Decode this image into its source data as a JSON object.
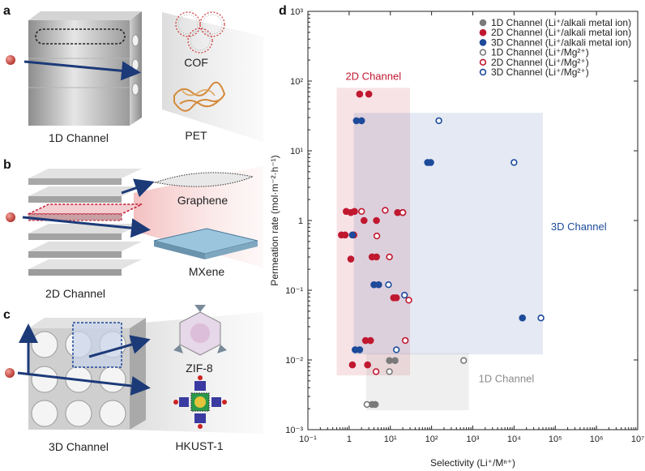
{
  "panels": {
    "a": {
      "letter": "a",
      "channel_label": "1D Channel",
      "materials": [
        "COF",
        "PET"
      ]
    },
    "b": {
      "letter": "b",
      "channel_label": "2D Channel",
      "materials": [
        "Graphene",
        "MXene"
      ]
    },
    "c": {
      "letter": "c",
      "channel_label": "3D Channel",
      "materials": [
        "ZIF-8",
        "HKUST-1"
      ]
    },
    "d": {
      "letter": "d"
    }
  },
  "colors": {
    "oneD": "#7a7a7a",
    "twoD": "#c0182f",
    "threeD": "#1d4a9a",
    "arrow": "#1c3a78",
    "ion": "#c9463f"
  },
  "chart_data": {
    "type": "scatter",
    "xlabel": "Selectivity (Li⁺/Mⁿ⁺)",
    "ylabel": "Permeation rate (mol·m⁻²·h⁻¹)",
    "xscale": "log",
    "yscale": "log",
    "xlim": [
      0.1,
      10000000
    ],
    "ylim": [
      0.001,
      1000
    ],
    "x_ticks": [
      "10⁻¹",
      "1",
      "10¹",
      "10²",
      "10³",
      "10⁴",
      "10⁵",
      "10⁶",
      "10⁷"
    ],
    "y_ticks": [
      "10⁻³",
      "10⁻²",
      "10⁻¹",
      "1",
      "10¹",
      "10²",
      "10³"
    ],
    "legend_position": "top-right",
    "regions": [
      {
        "label": "2D Channel",
        "color": "#c0182f",
        "x": [
          0.5,
          30
        ],
        "y": [
          0.006,
          80
        ]
      },
      {
        "label": "3D Channel",
        "color": "#1d4a9a",
        "x": [
          1.3,
          50000
        ],
        "y": [
          0.012,
          35
        ]
      },
      {
        "label": "1D Channel",
        "color": "#7a7a7a",
        "x": [
          2.6,
          800
        ],
        "y": [
          0.0019,
          0.0125
        ]
      }
    ],
    "series": [
      {
        "name": "1D Channel (Li⁺/alkali metal ion)",
        "color": "#7a7a7a",
        "filled": true,
        "points": [
          [
            3.6,
            0.0023
          ],
          [
            4.3,
            0.0023
          ],
          [
            9.5,
            0.0098
          ],
          [
            13,
            0.0098
          ]
        ]
      },
      {
        "name": "2D Channel (Li⁺/alkali metal ion)",
        "color": "#c0182f",
        "filled": true,
        "points": [
          [
            1.8,
            65
          ],
          [
            3.0,
            65
          ],
          [
            0.85,
            1.35
          ],
          [
            1.1,
            1.3
          ],
          [
            1.35,
            1.35
          ],
          [
            2.3,
            1.0
          ],
          [
            4.6,
            1.0
          ],
          [
            15,
            1.3
          ],
          [
            20,
            1.3
          ],
          [
            0.65,
            0.62
          ],
          [
            0.8,
            0.62
          ],
          [
            1.3,
            0.62
          ],
          [
            1.1,
            0.28
          ],
          [
            3.6,
            0.3
          ],
          [
            4.6,
            0.3
          ],
          [
            12,
            0.078
          ],
          [
            14,
            0.078
          ],
          [
            2.5,
            0.019
          ],
          [
            3.3,
            0.019
          ],
          [
            1.2,
            0.0085
          ],
          [
            2.8,
            0.0085
          ]
        ]
      },
      {
        "name": "3D Channel (Li⁺/alkali metal ion)",
        "color": "#1d4a9a",
        "filled": true,
        "points": [
          [
            1.5,
            27
          ],
          [
            2.0,
            27
          ],
          [
            80,
            6.8
          ],
          [
            95,
            6.8
          ],
          [
            1.2,
            0.62
          ],
          [
            4.0,
            0.12
          ],
          [
            5.2,
            0.12
          ],
          [
            1.4,
            0.014
          ],
          [
            1.8,
            0.014
          ],
          [
            16000,
            0.04
          ]
        ]
      },
      {
        "name": "1D Channel (Li⁺/Mg²⁺)",
        "color": "#7a7a7a",
        "filled": false,
        "points": [
          [
            2.7,
            0.0023
          ],
          [
            9.5,
            0.0068
          ],
          [
            600,
            0.0098
          ]
        ]
      },
      {
        "name": "2D Channel (Li⁺/Mg²⁺)",
        "color": "#c0182f",
        "filled": false,
        "points": [
          [
            2.0,
            1.35
          ],
          [
            7.5,
            1.4
          ],
          [
            9.5,
            0.3
          ],
          [
            20,
            1.3
          ],
          [
            4.7,
            0.6
          ],
          [
            28,
            0.072
          ],
          [
            23,
            0.019
          ],
          [
            4.5,
            0.0068
          ]
        ]
      },
      {
        "name": "3D Channel (Li⁺/Mg²⁺)",
        "color": "#1d4a9a",
        "filled": false,
        "points": [
          [
            150,
            27
          ],
          [
            10000,
            6.8
          ],
          [
            9,
            0.12
          ],
          [
            22,
            0.085
          ],
          [
            14,
            0.014
          ],
          [
            45000,
            0.04
          ]
        ]
      }
    ]
  }
}
